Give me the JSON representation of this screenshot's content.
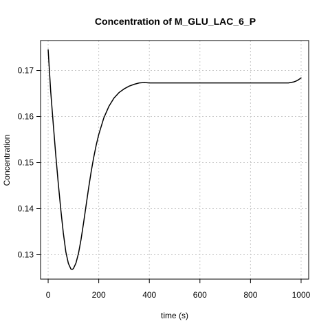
{
  "chart_data": {
    "type": "line",
    "title": "Concentration of M_GLU_LAC_6_P",
    "xlabel": "time (s)",
    "ylabel": "Concentration",
    "xlim": [
      -30,
      1030
    ],
    "ylim": [
      0.1247,
      0.1765
    ],
    "x_ticks": [
      0,
      200,
      400,
      600,
      800,
      1000
    ],
    "y_ticks": [
      0.13,
      0.14,
      0.15,
      0.16,
      0.17
    ],
    "x_tick_labels": [
      "0",
      "200",
      "400",
      "600",
      "800",
      "1000"
    ],
    "y_tick_labels": [
      "0.13",
      "0.14",
      "0.15",
      "0.16",
      "0.17"
    ],
    "grid": true,
    "line_color": "#000000",
    "grid_color": "#c8c8c8",
    "series": [
      {
        "x": [
          0,
          5,
          10,
          20,
          30,
          40,
          50,
          60,
          70,
          80,
          90,
          95,
          100,
          110,
          120,
          130,
          140,
          150,
          160,
          170,
          180,
          190,
          200,
          220,
          240,
          260,
          280,
          300,
          320,
          340,
          360,
          380,
          400,
          500,
          600,
          700,
          800,
          900,
          950,
          970,
          980,
          990,
          1000
        ],
        "y": [
          0.1745,
          0.17,
          0.1655,
          0.1585,
          0.1517,
          0.1455,
          0.1398,
          0.1347,
          0.1306,
          0.1281,
          0.1269,
          0.1268,
          0.127,
          0.1282,
          0.1303,
          0.1333,
          0.1369,
          0.1407,
          0.1445,
          0.148,
          0.1511,
          0.1538,
          0.1561,
          0.1597,
          0.1622,
          0.164,
          0.1652,
          0.166,
          0.1666,
          0.167,
          0.1673,
          0.1674,
          0.1673,
          0.1673,
          0.1673,
          0.1673,
          0.1673,
          0.1673,
          0.1673,
          0.1675,
          0.1677,
          0.168,
          0.1684
        ]
      }
    ]
  }
}
